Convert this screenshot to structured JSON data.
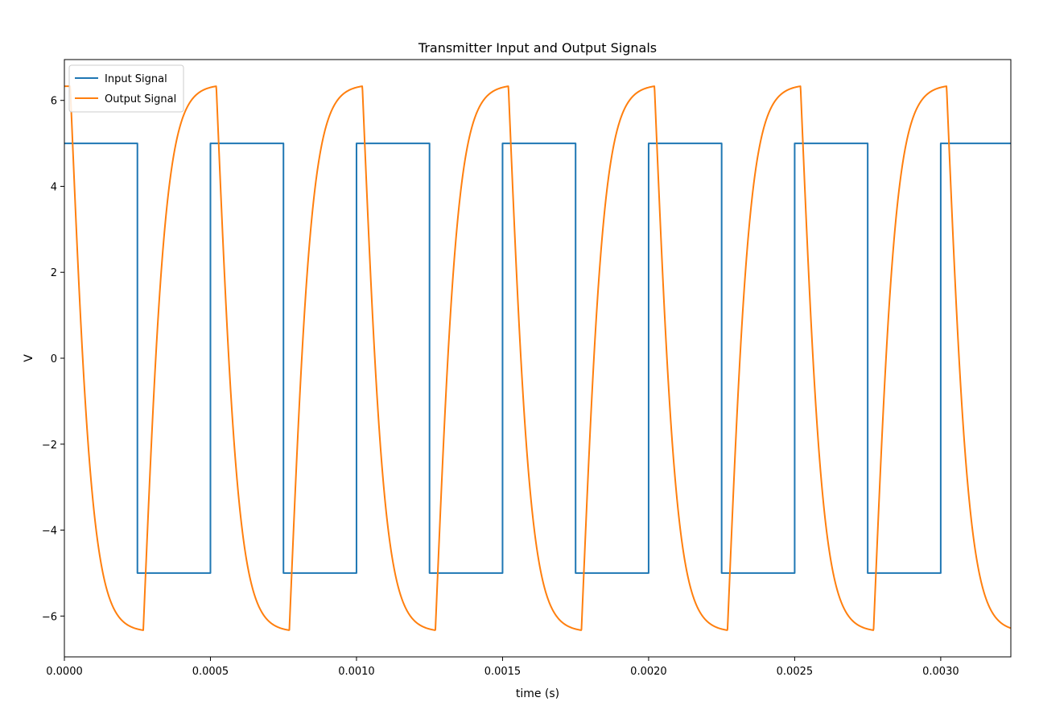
{
  "chart_data": {
    "type": "line",
    "title": "Transmitter Input and Output Signals",
    "xlabel": "time (s)",
    "ylabel": "V",
    "xlim": [
      0,
      0.00324
    ],
    "ylim": [
      -6.95,
      6.95
    ],
    "x_ticks": [
      0,
      0.0005,
      0.001,
      0.0015,
      0.002,
      0.0025,
      0.003
    ],
    "x_tick_labels": [
      "0.0000",
      "0.0005",
      "0.0010",
      "0.0015",
      "0.0020",
      "0.0025",
      "0.0030"
    ],
    "y_ticks": [
      -6,
      -4,
      -2,
      0,
      2,
      4,
      6
    ],
    "y_tick_labels": [
      "−6",
      "−4",
      "−2",
      "0",
      "2",
      "4",
      "6"
    ],
    "grid": false,
    "legend_position": "top-left",
    "series": [
      {
        "name": "Input Signal",
        "color": "#1f77b4",
        "kind": "square-wave",
        "high": 5,
        "low": -5,
        "period": 0.0005,
        "duty": 0.5,
        "start_level": "high"
      },
      {
        "name": "Output Signal",
        "color": "#ff7f0e",
        "kind": "rc-response",
        "peak": 6.33,
        "trough": -6.33,
        "period": 0.0005,
        "extremum_lag": 2e-05,
        "start_level": "peak"
      }
    ]
  }
}
